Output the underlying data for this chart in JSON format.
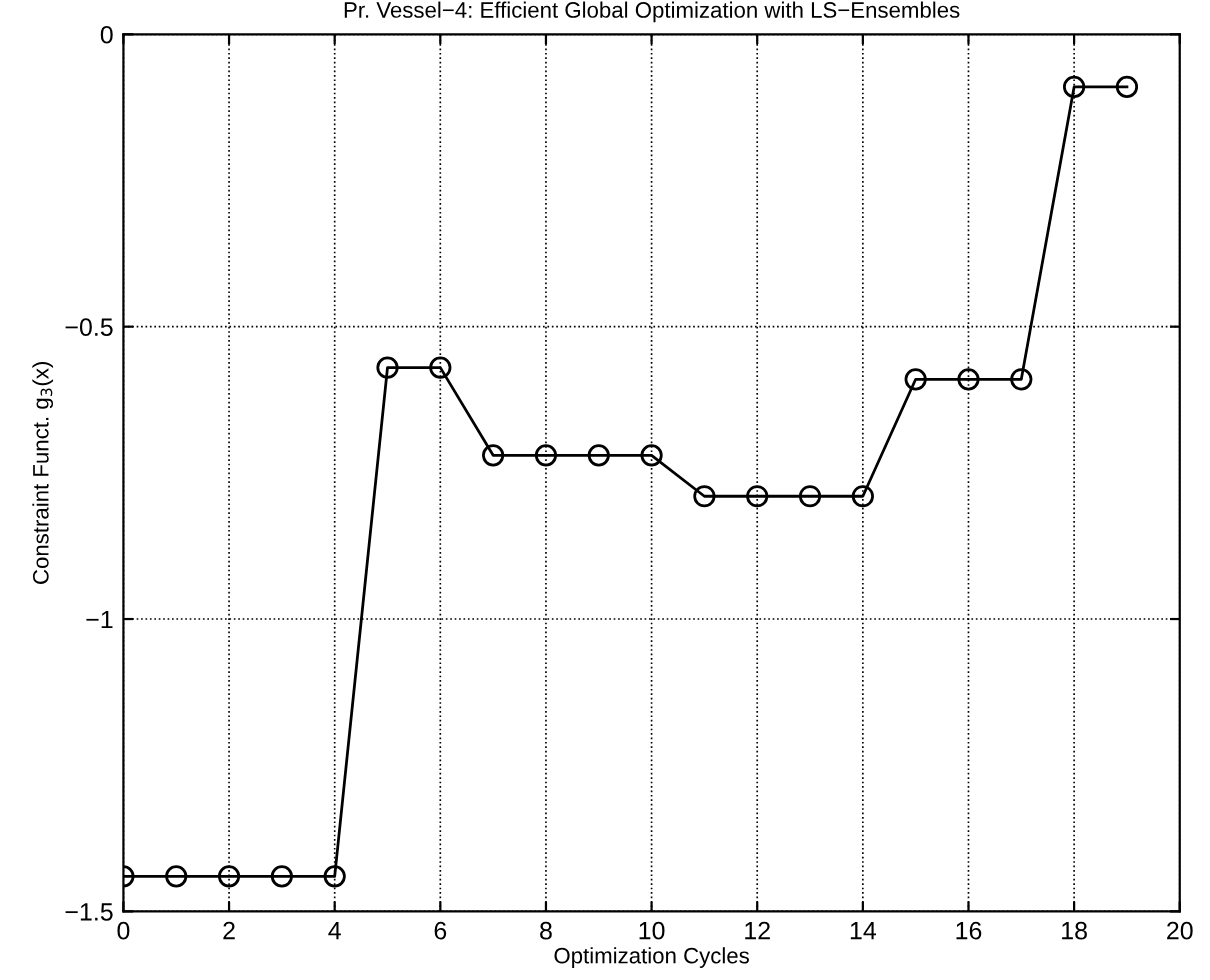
{
  "chart_data": {
    "type": "line",
    "title": "Pr. Vessel−4: Efficient Global Optimization with LS−Ensembles",
    "xlabel": "Optimization Cycles",
    "ylabel": "Constraint Funct. g$_{3}$(x)",
    "x": [
      0,
      1,
      2,
      3,
      4,
      5,
      6,
      7,
      8,
      9,
      10,
      11,
      12,
      13,
      14,
      15,
      16,
      17,
      18,
      19
    ],
    "series": [
      {
        "color": "#000000",
        "values": [
          -1.44,
          -1.44,
          -1.44,
          -1.44,
          -1.44,
          -0.57,
          -0.57,
          -0.72,
          -0.72,
          -0.72,
          -0.72,
          -0.79,
          -0.79,
          -0.79,
          -0.79,
          -0.59,
          -0.59,
          -0.59,
          -0.09,
          -0.09
        ]
      }
    ],
    "xlim": [
      0,
      20
    ],
    "xticks": [
      0,
      2,
      4,
      6,
      8,
      10,
      12,
      14,
      16,
      18,
      20
    ],
    "ylim": [
      -1.5,
      0
    ],
    "yticks": [
      {
        "value": -1.5,
        "label": "−1.5"
      },
      {
        "value": -1,
        "label": "−1"
      },
      {
        "value": -0.5,
        "label": "−0.5"
      },
      0
    ],
    "grid": true,
    "marker": "circle",
    "line_style": "solid",
    "legend": false
  }
}
